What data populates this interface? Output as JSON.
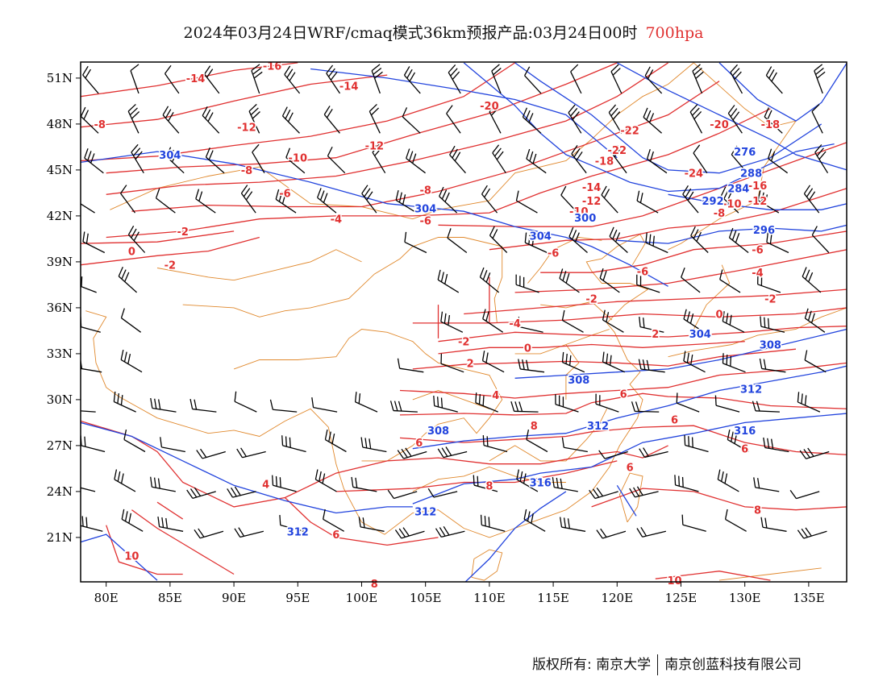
{
  "title": {
    "main": "2024年03月24日WRF/cmaq模式36km预报产品:03月24日00时",
    "level": "700hpa"
  },
  "colors": {
    "temperature": "#e03030",
    "geopotential": "#2244dd",
    "border": "#e0882c",
    "barb": "#000000",
    "frame": "#000000"
  },
  "axes": {
    "lat_labels": [
      "51N",
      "48N",
      "45N",
      "42N",
      "39N",
      "36N",
      "33N",
      "30N",
      "27N",
      "24N",
      "21N"
    ],
    "lon_labels": [
      "80E",
      "85E",
      "90E",
      "95E",
      "100E",
      "105E",
      "110E",
      "115E",
      "120E",
      "125E",
      "130E",
      "135E"
    ],
    "lat_range": [
      18,
      52
    ],
    "lon_range": [
      78,
      138
    ]
  },
  "temperature_labels": [
    {
      "text": "-16",
      "lon": 93,
      "lat": 51.8
    },
    {
      "text": "-14",
      "lon": 87,
      "lat": 51
    },
    {
      "text": "-14",
      "lon": 99,
      "lat": 50.5
    },
    {
      "text": "-8",
      "lon": 79.5,
      "lat": 48
    },
    {
      "text": "-12",
      "lon": 91,
      "lat": 47.8
    },
    {
      "text": "-20",
      "lon": 110,
      "lat": 49.2
    },
    {
      "text": "-10",
      "lon": 95,
      "lat": 45.8
    },
    {
      "text": "-12",
      "lon": 101,
      "lat": 46.6
    },
    {
      "text": "-8",
      "lon": 91,
      "lat": 45
    },
    {
      "text": "-6",
      "lon": 94,
      "lat": 43.5
    },
    {
      "text": "-8",
      "lon": 105,
      "lat": 43.7
    },
    {
      "text": "-4",
      "lon": 98,
      "lat": 41.8
    },
    {
      "text": "-6",
      "lon": 105,
      "lat": 41.7
    },
    {
      "text": "-2",
      "lon": 86,
      "lat": 41
    },
    {
      "text": "0",
      "lon": 82,
      "lat": 39.7
    },
    {
      "text": "-2",
      "lon": 85,
      "lat": 38.8
    },
    {
      "text": "-22",
      "lon": 121,
      "lat": 47.6
    },
    {
      "text": "-20",
      "lon": 128,
      "lat": 48
    },
    {
      "text": "-18",
      "lon": 132,
      "lat": 48
    },
    {
      "text": "-22",
      "lon": 120,
      "lat": 46.3
    },
    {
      "text": "-18",
      "lon": 119,
      "lat": 45.6
    },
    {
      "text": "-14",
      "lon": 118,
      "lat": 43.9
    },
    {
      "text": "-12",
      "lon": 118,
      "lat": 43
    },
    {
      "text": "-10",
      "lon": 117,
      "lat": 42.3
    },
    {
      "text": "-24",
      "lon": 126,
      "lat": 44.8
    },
    {
      "text": "-16",
      "lon": 131,
      "lat": 44
    },
    {
      "text": "-12",
      "lon": 131,
      "lat": 43
    },
    {
      "text": "-10",
      "lon": 129,
      "lat": 42.8
    },
    {
      "text": "-8",
      "lon": 128,
      "lat": 42.2
    },
    {
      "text": "-6",
      "lon": 115,
      "lat": 39.6
    },
    {
      "text": "-6",
      "lon": 122,
      "lat": 38.4
    },
    {
      "text": "-6",
      "lon": 131,
      "lat": 39.8
    },
    {
      "text": "-4",
      "lon": 131,
      "lat": 38.3
    },
    {
      "text": "-2",
      "lon": 118,
      "lat": 36.6
    },
    {
      "text": "-2",
      "lon": 132,
      "lat": 36.6
    },
    {
      "text": "0",
      "lon": 128,
      "lat": 35.6
    },
    {
      "text": "-4",
      "lon": 112,
      "lat": 35
    },
    {
      "text": "-2",
      "lon": 108,
      "lat": 33.8
    },
    {
      "text": "0",
      "lon": 113,
      "lat": 33.4
    },
    {
      "text": "2",
      "lon": 123,
      "lat": 34.3
    },
    {
      "text": "2",
      "lon": 108.5,
      "lat": 32.4
    },
    {
      "text": "4",
      "lon": 110.5,
      "lat": 30.3
    },
    {
      "text": "6",
      "lon": 120.5,
      "lat": 30.4
    },
    {
      "text": "6",
      "lon": 124.5,
      "lat": 28.7
    },
    {
      "text": "8",
      "lon": 113.5,
      "lat": 28.3
    },
    {
      "text": "6",
      "lon": 104.5,
      "lat": 27.2
    },
    {
      "text": "6",
      "lon": 121,
      "lat": 25.6
    },
    {
      "text": "6",
      "lon": 130,
      "lat": 26.8
    },
    {
      "text": "8",
      "lon": 110,
      "lat": 24.4
    },
    {
      "text": "4",
      "lon": 92.5,
      "lat": 24.5
    },
    {
      "text": "6",
      "lon": 98,
      "lat": 21.2
    },
    {
      "text": "8",
      "lon": 131,
      "lat": 22.8
    },
    {
      "text": "10",
      "lon": 82,
      "lat": 19.8
    },
    {
      "text": "10",
      "lon": 124.5,
      "lat": 18.2
    },
    {
      "text": "8",
      "lon": 101,
      "lat": 18
    }
  ],
  "geopotential_labels": [
    {
      "text": "304",
      "lon": 85,
      "lat": 46
    },
    {
      "text": "304",
      "lon": 105,
      "lat": 42.5
    },
    {
      "text": "300",
      "lon": 117.5,
      "lat": 41.9
    },
    {
      "text": "304",
      "lon": 114,
      "lat": 40.7
    },
    {
      "text": "276",
      "lon": 130,
      "lat": 46.2
    },
    {
      "text": "288",
      "lon": 130.5,
      "lat": 44.8
    },
    {
      "text": "284",
      "lon": 129.5,
      "lat": 43.8
    },
    {
      "text": "292",
      "lon": 127.5,
      "lat": 43
    },
    {
      "text": "296",
      "lon": 131.5,
      "lat": 41.1
    },
    {
      "text": "304",
      "lon": 126.5,
      "lat": 34.3
    },
    {
      "text": "308",
      "lon": 132,
      "lat": 33.6
    },
    {
      "text": "308",
      "lon": 117,
      "lat": 31.3
    },
    {
      "text": "312",
      "lon": 130.5,
      "lat": 30.7
    },
    {
      "text": "312",
      "lon": 118.5,
      "lat": 28.3
    },
    {
      "text": "308",
      "lon": 106,
      "lat": 28
    },
    {
      "text": "316",
      "lon": 130,
      "lat": 28
    },
    {
      "text": "316",
      "lon": 114,
      "lat": 24.6
    },
    {
      "text": "312",
      "lon": 105,
      "lat": 22.7
    },
    {
      "text": "312",
      "lon": 95,
      "lat": 21.4
    }
  ],
  "copyright": {
    "left": "版权所有: 南京大学",
    "right": "南京创蓝科技有限公司"
  }
}
